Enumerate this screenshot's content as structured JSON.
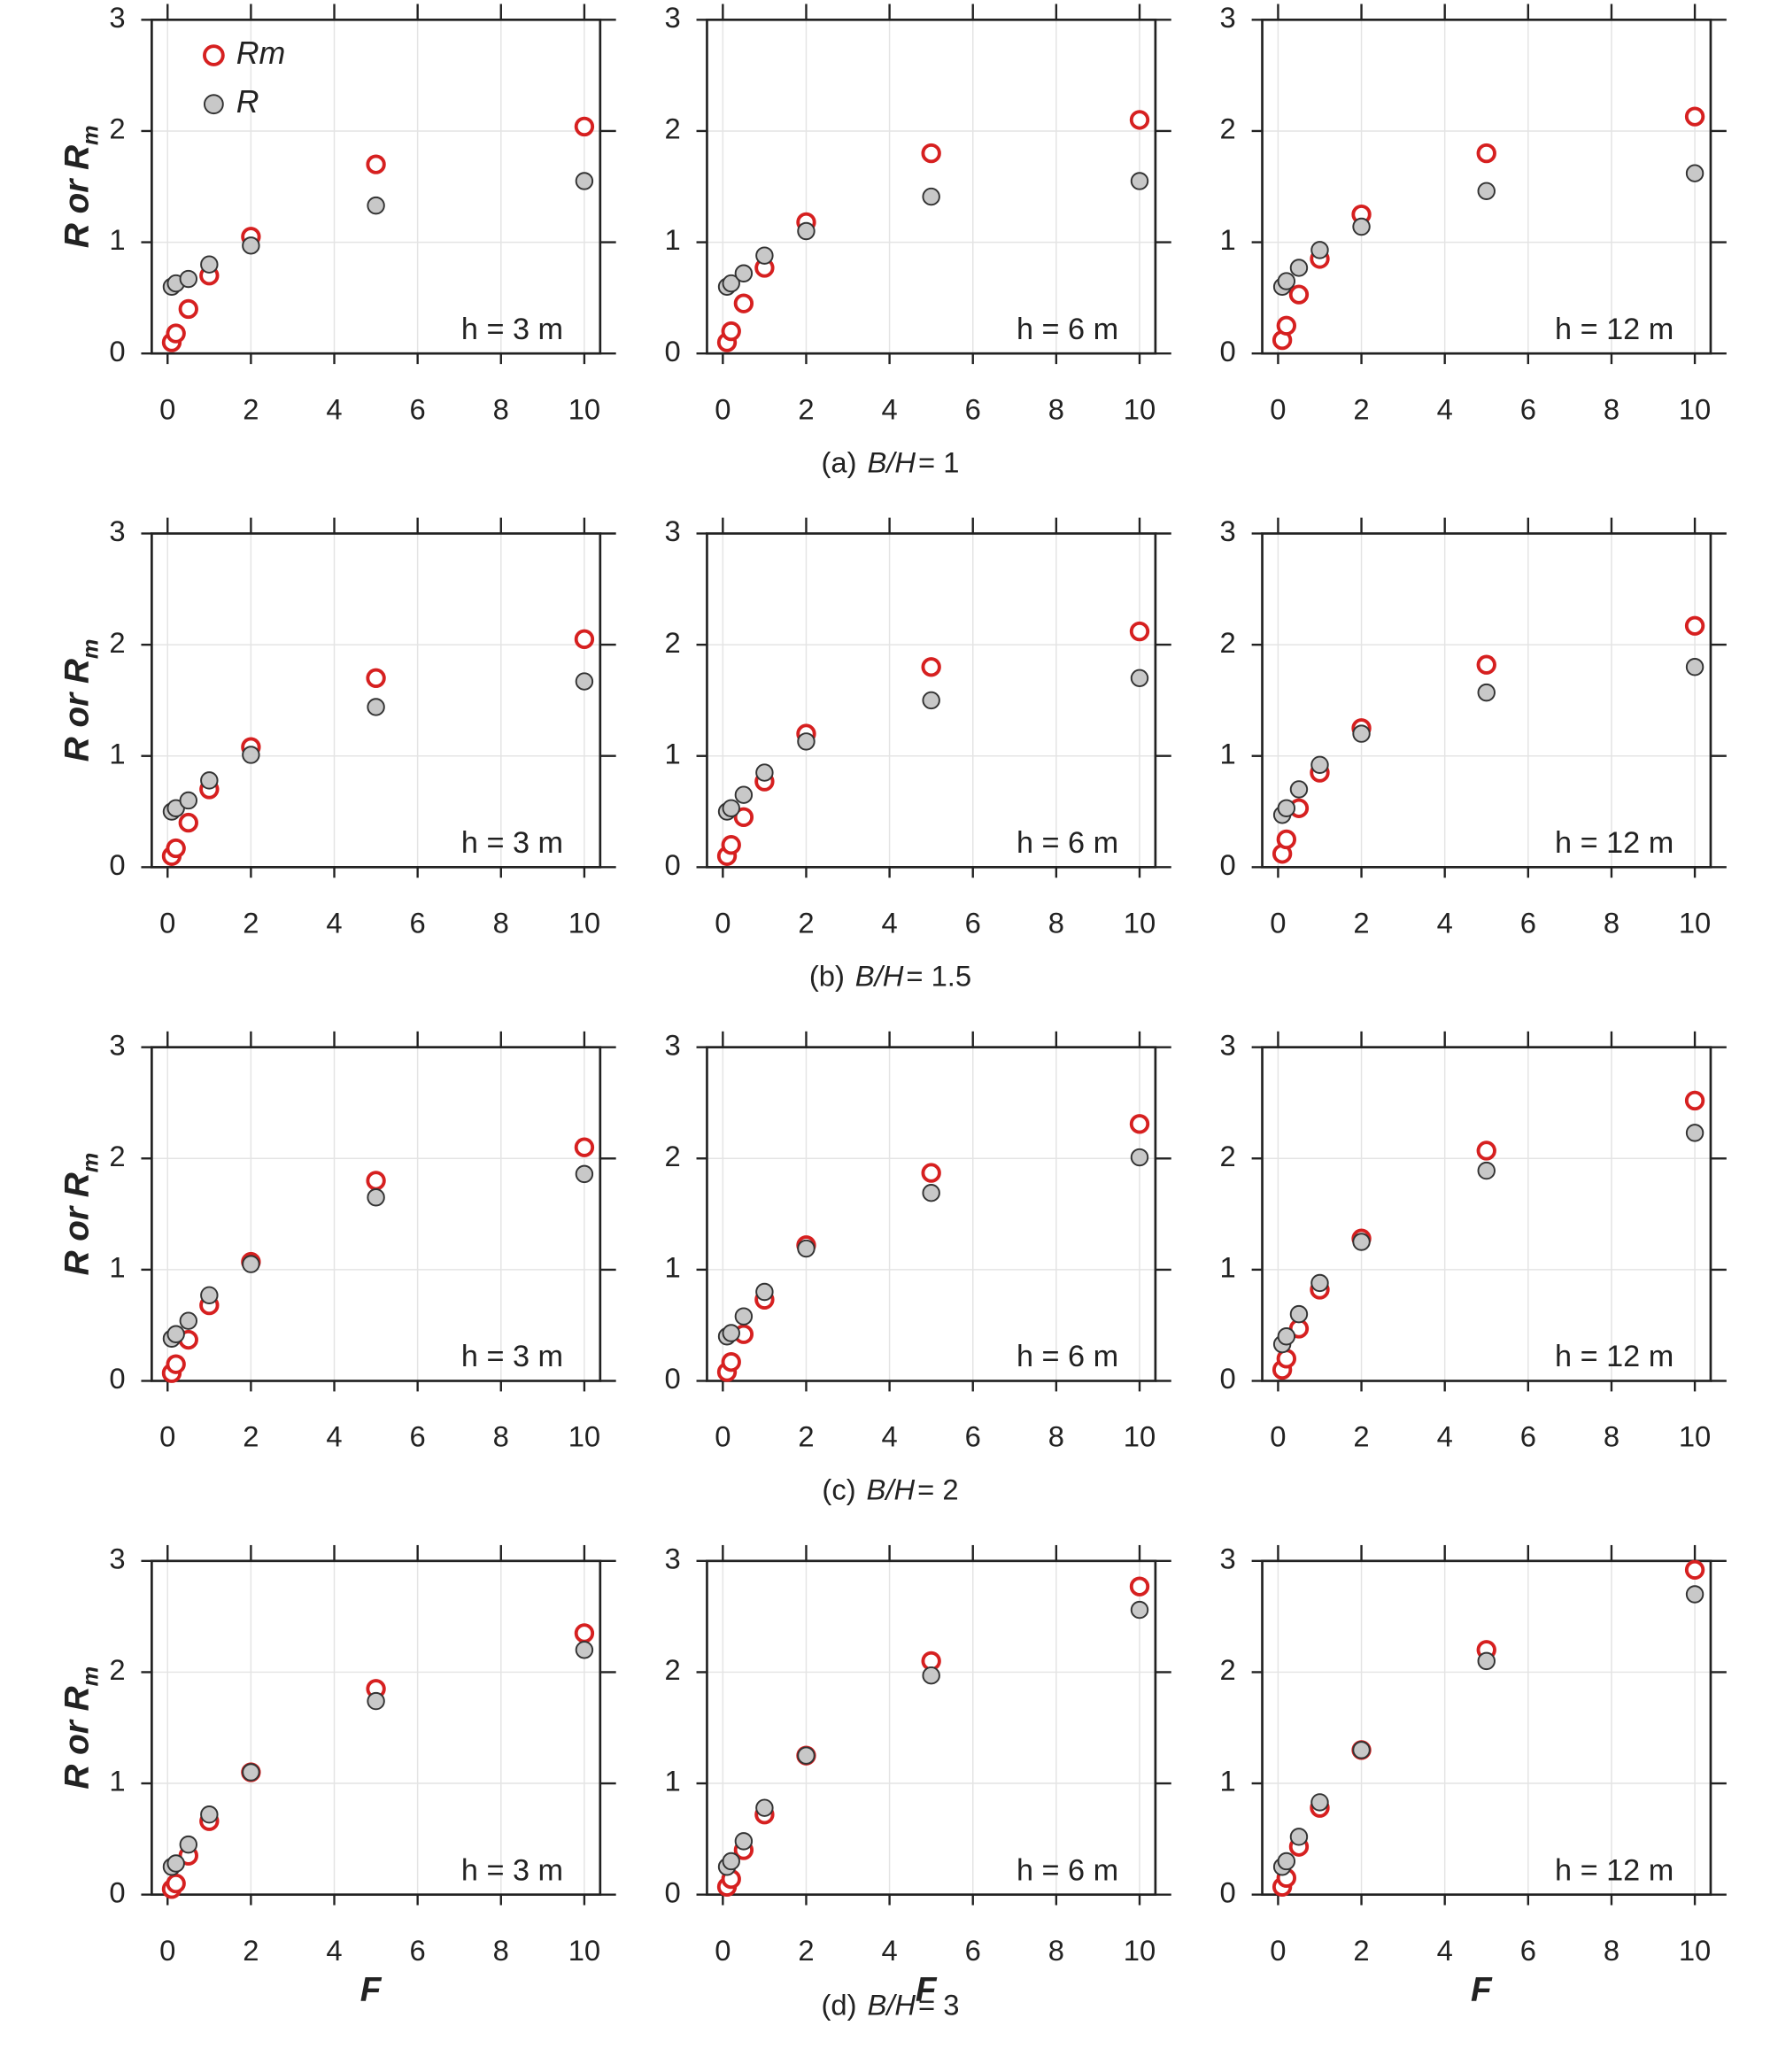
{
  "chart_data": [
    {
      "type": "scatter",
      "x": [
        0.1,
        0.2,
        0.5,
        1,
        2,
        5,
        10
      ],
      "series": [
        {
          "name": "Rm",
          "color": "#d62020",
          "values": [
            0.1,
            0.18,
            0.4,
            0.7,
            1.05,
            1.7,
            2.04
          ]
        },
        {
          "name": "R",
          "color": "#c8c8c8",
          "values": [
            0.6,
            0.63,
            0.67,
            0.8,
            0.97,
            1.33,
            1.55
          ]
        }
      ],
      "legend": "upper left",
      "xlim": [
        -0.38,
        10.38
      ],
      "ylim": [
        0,
        3
      ],
      "xticks": [
        0,
        2,
        4,
        6,
        8,
        10
      ],
      "yticks": [
        0,
        1,
        2,
        3
      ],
      "grid": true,
      "annotation": "h = 3 m",
      "ylabel": {
        "main": "R or R",
        "sub": "m"
      }
    },
    {
      "type": "scatter",
      "x": [
        0.1,
        0.2,
        0.5,
        1,
        2,
        5,
        10
      ],
      "series": [
        {
          "color": "#d62020",
          "values": [
            0.1,
            0.2,
            0.45,
            0.77,
            1.18,
            1.8,
            2.1
          ]
        },
        {
          "color": "#c8c8c8",
          "values": [
            0.6,
            0.63,
            0.72,
            0.88,
            1.1,
            1.41,
            1.55
          ]
        }
      ],
      "xlim": [
        -0.38,
        10.38
      ],
      "ylim": [
        0,
        3
      ],
      "xticks": [
        0,
        2,
        4,
        6,
        8,
        10
      ],
      "yticks": [
        0,
        1,
        2,
        3
      ],
      "grid": true,
      "annotation": "h = 6 m"
    },
    {
      "type": "scatter",
      "x": [
        0.1,
        0.2,
        0.5,
        1,
        2,
        5,
        10
      ],
      "series": [
        {
          "color": "#d62020",
          "values": [
            0.12,
            0.25,
            0.53,
            0.85,
            1.25,
            1.8,
            2.13
          ]
        },
        {
          "color": "#c8c8c8",
          "values": [
            0.6,
            0.65,
            0.77,
            0.93,
            1.14,
            1.46,
            1.62
          ]
        }
      ],
      "xlim": [
        -0.38,
        10.38
      ],
      "ylim": [
        0,
        3
      ],
      "xticks": [
        0,
        2,
        4,
        6,
        8,
        10
      ],
      "yticks": [
        0,
        1,
        2,
        3
      ],
      "grid": true,
      "annotation": "h = 12 m"
    },
    {
      "type": "scatter",
      "x": [
        0.1,
        0.2,
        0.5,
        1,
        2,
        5,
        10
      ],
      "series": [
        {
          "color": "#d62020",
          "values": [
            0.1,
            0.17,
            0.4,
            0.7,
            1.08,
            1.7,
            2.05
          ]
        },
        {
          "color": "#c8c8c8",
          "values": [
            0.5,
            0.53,
            0.6,
            0.78,
            1.01,
            1.44,
            1.67
          ]
        }
      ],
      "xlim": [
        -0.38,
        10.38
      ],
      "ylim": [
        0,
        3
      ],
      "xticks": [
        0,
        2,
        4,
        6,
        8,
        10
      ],
      "yticks": [
        0,
        1,
        2,
        3
      ],
      "grid": true,
      "annotation": "h = 3 m",
      "ylabel": {
        "main": "R or R",
        "sub": "m"
      }
    },
    {
      "type": "scatter",
      "x": [
        0.1,
        0.2,
        0.5,
        1,
        2,
        5,
        10
      ],
      "series": [
        {
          "color": "#d62020",
          "values": [
            0.1,
            0.2,
            0.45,
            0.77,
            1.2,
            1.8,
            2.12
          ]
        },
        {
          "color": "#c8c8c8",
          "values": [
            0.5,
            0.53,
            0.65,
            0.85,
            1.13,
            1.5,
            1.7
          ]
        }
      ],
      "xlim": [
        -0.38,
        10.38
      ],
      "ylim": [
        0,
        3
      ],
      "xticks": [
        0,
        2,
        4,
        6,
        8,
        10
      ],
      "yticks": [
        0,
        1,
        2,
        3
      ],
      "grid": true,
      "annotation": "h = 6 m"
    },
    {
      "type": "scatter",
      "x": [
        0.1,
        0.2,
        0.5,
        1,
        2,
        5,
        10
      ],
      "series": [
        {
          "color": "#d62020",
          "values": [
            0.12,
            0.25,
            0.53,
            0.85,
            1.25,
            1.82,
            2.17
          ]
        },
        {
          "color": "#c8c8c8",
          "values": [
            0.47,
            0.53,
            0.7,
            0.92,
            1.2,
            1.57,
            1.8
          ]
        }
      ],
      "xlim": [
        -0.38,
        10.38
      ],
      "ylim": [
        0,
        3
      ],
      "xticks": [
        0,
        2,
        4,
        6,
        8,
        10
      ],
      "yticks": [
        0,
        1,
        2,
        3
      ],
      "grid": true,
      "annotation": "h = 12 m"
    },
    {
      "type": "scatter",
      "x": [
        0.1,
        0.2,
        0.5,
        1,
        2,
        5,
        10
      ],
      "series": [
        {
          "color": "#d62020",
          "values": [
            0.07,
            0.15,
            0.37,
            0.68,
            1.07,
            1.8,
            2.1
          ]
        },
        {
          "color": "#c8c8c8",
          "values": [
            0.38,
            0.42,
            0.54,
            0.77,
            1.05,
            1.65,
            1.86
          ]
        }
      ],
      "xlim": [
        -0.38,
        10.38
      ],
      "ylim": [
        0,
        3
      ],
      "xticks": [
        0,
        2,
        4,
        6,
        8,
        10
      ],
      "yticks": [
        0,
        1,
        2,
        3
      ],
      "grid": true,
      "annotation": "h = 3 m",
      "ylabel": {
        "main": "R or R",
        "sub": "m"
      }
    },
    {
      "type": "scatter",
      "x": [
        0.1,
        0.2,
        0.5,
        1,
        2,
        5,
        10
      ],
      "series": [
        {
          "color": "#d62020",
          "values": [
            0.08,
            0.17,
            0.42,
            0.73,
            1.22,
            1.87,
            2.31
          ]
        },
        {
          "color": "#c8c8c8",
          "values": [
            0.4,
            0.43,
            0.58,
            0.8,
            1.19,
            1.69,
            2.01
          ]
        }
      ],
      "xlim": [
        -0.38,
        10.38
      ],
      "ylim": [
        0,
        3
      ],
      "xticks": [
        0,
        2,
        4,
        6,
        8,
        10
      ],
      "yticks": [
        0,
        1,
        2,
        3
      ],
      "grid": true,
      "annotation": "h = 6 m"
    },
    {
      "type": "scatter",
      "x": [
        0.1,
        0.2,
        0.5,
        1,
        2,
        5,
        10
      ],
      "series": [
        {
          "color": "#d62020",
          "values": [
            0.1,
            0.2,
            0.47,
            0.82,
            1.28,
            2.07,
            2.52
          ]
        },
        {
          "color": "#c8c8c8",
          "values": [
            0.33,
            0.4,
            0.6,
            0.88,
            1.25,
            1.89,
            2.23
          ]
        }
      ],
      "xlim": [
        -0.38,
        10.38
      ],
      "ylim": [
        0,
        3
      ],
      "xticks": [
        0,
        2,
        4,
        6,
        8,
        10
      ],
      "yticks": [
        0,
        1,
        2,
        3
      ],
      "grid": true,
      "annotation": "h = 12 m"
    },
    {
      "type": "scatter",
      "x": [
        0.1,
        0.2,
        0.5,
        1,
        2,
        5,
        10
      ],
      "series": [
        {
          "color": "#d62020",
          "values": [
            0.05,
            0.1,
            0.35,
            0.66,
            1.1,
            1.85,
            2.35
          ]
        },
        {
          "color": "#c8c8c8",
          "values": [
            0.25,
            0.28,
            0.45,
            0.72,
            1.1,
            1.74,
            2.2
          ]
        }
      ],
      "xlim": [
        -0.38,
        10.38
      ],
      "ylim": [
        0,
        3
      ],
      "xticks": [
        0,
        2,
        4,
        6,
        8,
        10
      ],
      "yticks": [
        0,
        1,
        2,
        3
      ],
      "grid": true,
      "annotation": "h = 3 m",
      "ylabel": {
        "main": "R or R",
        "sub": "m"
      },
      "xlabel": "F"
    },
    {
      "type": "scatter",
      "x": [
        0.1,
        0.2,
        0.5,
        1,
        2,
        5,
        10
      ],
      "series": [
        {
          "color": "#d62020",
          "values": [
            0.07,
            0.14,
            0.4,
            0.72,
            1.25,
            2.1,
            2.77
          ]
        },
        {
          "color": "#c8c8c8",
          "values": [
            0.25,
            0.3,
            0.48,
            0.78,
            1.25,
            1.97,
            2.56
          ]
        }
      ],
      "xlim": [
        -0.38,
        10.38
      ],
      "ylim": [
        0,
        3
      ],
      "xticks": [
        0,
        2,
        4,
        6,
        8,
        10
      ],
      "yticks": [
        0,
        1,
        2,
        3
      ],
      "grid": true,
      "annotation": "h = 6 m",
      "xlabel": "F"
    },
    {
      "type": "scatter",
      "x": [
        0.1,
        0.2,
        0.5,
        1,
        2,
        5,
        10
      ],
      "series": [
        {
          "color": "#d62020",
          "values": [
            0.07,
            0.15,
            0.43,
            0.78,
            1.3,
            2.2,
            2.92
          ]
        },
        {
          "color": "#c8c8c8",
          "values": [
            0.25,
            0.3,
            0.52,
            0.83,
            1.3,
            2.1,
            2.7
          ]
        }
      ],
      "xlim": [
        -0.38,
        10.38
      ],
      "ylim": [
        0,
        3
      ],
      "xticks": [
        0,
        2,
        4,
        6,
        8,
        10
      ],
      "yticks": [
        0,
        1,
        2,
        3
      ],
      "grid": true,
      "annotation": "h = 12 m",
      "xlabel": "F"
    }
  ],
  "captions": [
    {
      "tag": "(a)",
      "var": "B/H",
      "eq": "= 1"
    },
    {
      "tag": "(b)",
      "var": "B/H",
      "eq": "= 1.5"
    },
    {
      "tag": "(c)",
      "var": "B/H",
      "eq": "= 2"
    },
    {
      "tag": "(d)",
      "var": "B/H",
      "eq": "= 3"
    }
  ]
}
